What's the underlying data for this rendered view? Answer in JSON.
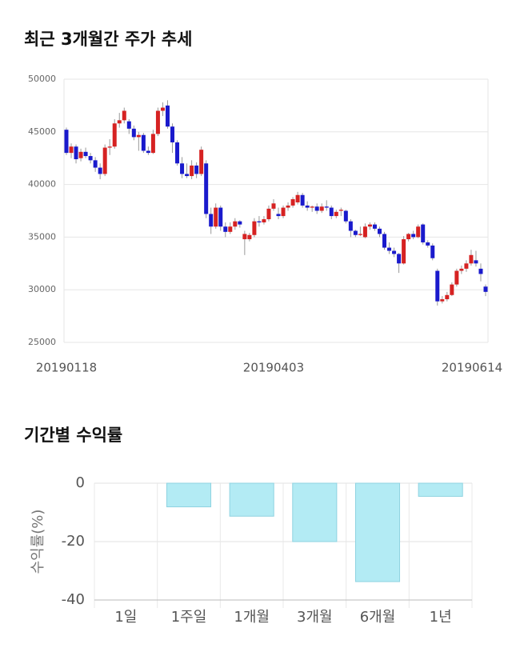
{
  "chart_data": [
    {
      "type": "candlestick",
      "title": "최근 3개월간 주가 추세",
      "categories": [
        "20190118",
        null,
        null,
        null,
        null,
        null,
        null,
        null,
        null,
        null,
        null,
        null,
        null,
        null,
        null,
        null,
        null,
        null,
        null,
        null,
        null,
        null,
        null,
        null,
        null,
        null,
        null,
        null,
        null,
        null,
        null,
        null,
        null,
        null,
        null,
        null,
        null,
        null,
        null,
        null,
        null,
        null,
        null,
        "20190403",
        null,
        null,
        null,
        null,
        null,
        null,
        null,
        null,
        null,
        null,
        null,
        null,
        null,
        null,
        null,
        null,
        null,
        null,
        null,
        null,
        null,
        null,
        null,
        null,
        null,
        null,
        null,
        null,
        null,
        null,
        null,
        null,
        null,
        null,
        null,
        null,
        null,
        null,
        null,
        null,
        null,
        null,
        null,
        "20190614"
      ],
      "open": [
        45200,
        43000,
        43600,
        42500,
        43100,
        42700,
        42300,
        41600,
        41000,
        43500,
        43600,
        45800,
        46100,
        46000,
        45300,
        44500,
        44700,
        43200,
        43000,
        44800,
        47000,
        47500,
        45500,
        44000,
        42000,
        41000,
        40800,
        41800,
        41000,
        42000,
        37200,
        36000,
        37800,
        36000,
        35500,
        36000,
        36500,
        34800,
        34800,
        35200,
        36500,
        36400,
        36700,
        37700,
        37200,
        37000,
        37800,
        38000,
        38300,
        39000,
        38000,
        37800,
        37900,
        37500,
        37900,
        37800,
        37000,
        37500,
        37500,
        36500,
        35600,
        35200,
        35000,
        36000,
        36200,
        35800,
        35300,
        34000,
        33700,
        33400,
        32500,
        34800,
        35300,
        35000,
        36200,
        34500,
        34200,
        31800,
        28900,
        29100,
        29500,
        30500,
        31800,
        32000,
        32500,
        32800,
        32000,
        30300
      ],
      "high": [
        45400,
        43900,
        43800,
        43400,
        43500,
        43000,
        42600,
        42000,
        43800,
        44300,
        46200,
        46800,
        47300,
        46200,
        45600,
        45000,
        44900,
        43600,
        45200,
        47300,
        47800,
        48000,
        45800,
        44200,
        42600,
        42000,
        42300,
        42100,
        43600,
        42300,
        37800,
        38200,
        38000,
        36400,
        36400,
        36800,
        36600,
        35600,
        35400,
        36800,
        37000,
        37000,
        38000,
        38600,
        37800,
        38000,
        38300,
        38800,
        39300,
        39200,
        38400,
        38000,
        38200,
        38200,
        38500,
        38000,
        37600,
        37800,
        37600,
        36700,
        35700,
        36000,
        36300,
        36400,
        36400,
        36000,
        35500,
        34500,
        34000,
        33500,
        35100,
        35400,
        35600,
        36200,
        36300,
        34700,
        34400,
        32000,
        29400,
        29800,
        30700,
        32000,
        32300,
        32800,
        33800,
        33700,
        32500,
        30500
      ],
      "low": [
        42800,
        42500,
        42000,
        42200,
        42500,
        42000,
        41200,
        40500,
        40800,
        42800,
        43400,
        45400,
        45800,
        44800,
        44200,
        43200,
        43000,
        42800,
        42900,
        44600,
        46500,
        45300,
        43000,
        41800,
        40600,
        40600,
        40500,
        40600,
        40800,
        36800,
        35300,
        35800,
        35600,
        35000,
        35300,
        35700,
        35900,
        33300,
        34600,
        35000,
        36000,
        36200,
        36500,
        37500,
        36700,
        36800,
        37500,
        37800,
        38100,
        37800,
        37500,
        37400,
        37200,
        37300,
        37500,
        36700,
        36800,
        37000,
        36300,
        35000,
        35000,
        35100,
        34900,
        35700,
        35600,
        35000,
        33800,
        33400,
        33100,
        31600,
        32400,
        34600,
        34800,
        34900,
        34300,
        34000,
        32800,
        28500,
        28700,
        28900,
        29400,
        30300,
        31500,
        31700,
        32300,
        32200,
        30800,
        29400
      ],
      "close": [
        43000,
        43600,
        42400,
        43100,
        42700,
        42300,
        41600,
        41000,
        43500,
        43600,
        45800,
        46100,
        47000,
        45300,
        44500,
        44700,
        43200,
        43000,
        44800,
        47000,
        47300,
        45500,
        44000,
        42000,
        41000,
        40800,
        41800,
        41000,
        43300,
        37200,
        36000,
        37800,
        36000,
        35500,
        36000,
        36500,
        36200,
        35300,
        35200,
        36500,
        36400,
        36700,
        37700,
        38200,
        37000,
        37800,
        38000,
        38600,
        39000,
        38000,
        37800,
        37900,
        37500,
        37900,
        37800,
        37000,
        37400,
        37600,
        36500,
        35600,
        35200,
        35300,
        36000,
        36200,
        35800,
        35300,
        34000,
        33700,
        33400,
        32500,
        34800,
        35300,
        35000,
        36000,
        34500,
        34200,
        33000,
        28900,
        29100,
        29500,
        30500,
        31800,
        32000,
        32500,
        33300,
        32500,
        31500,
        29800
      ],
      "up_color": "#d62222",
      "down_color": "#1a1acc",
      "ylim": [
        25000,
        50000
      ],
      "yticks": [
        25000,
        30000,
        35000,
        40000,
        45000,
        50000
      ],
      "grid": true
    },
    {
      "type": "bar",
      "title": "기간별 수익률",
      "y_label": "수익률(%)",
      "categories": [
        "1일",
        "1주일",
        "1개월",
        "3개월",
        "6개월",
        "1년"
      ],
      "values": [
        0,
        -8.1,
        -11.3,
        -20.0,
        -33.7,
        -4.5
      ],
      "color": "#b3ebf4",
      "edge_color": "#8fd3e0",
      "ylim": [
        -40,
        0
      ],
      "yticks": [
        -40,
        -20,
        0
      ],
      "grid": true
    }
  ]
}
